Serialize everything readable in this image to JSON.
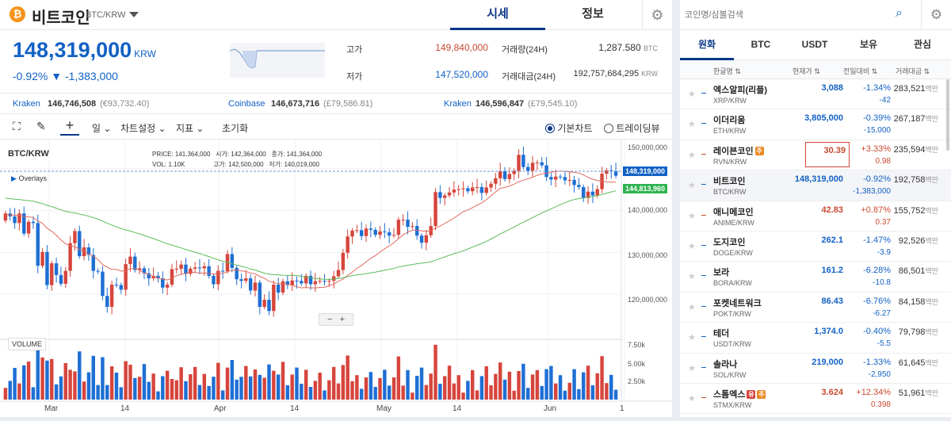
{
  "header": {
    "coin_icon": "₿",
    "coin_name": "비트코인",
    "pair": "BTC/KRW",
    "tab_price": "시세",
    "tab_info": "정보"
  },
  "price": {
    "value": "148,319,000",
    "unit": "KRW",
    "change_pct": "-0.92%",
    "change_arrow": "▼",
    "change_abs": "-1,383,000"
  },
  "stats": {
    "high_label": "고가",
    "high": "149,840,000",
    "low_label": "저가",
    "low": "147,520,000",
    "vol_label": "거래량(24H)",
    "vol": "1,287.580",
    "vol_unit": "BTC",
    "amt_label": "거래대금(24H)",
    "amt": "192,757,684,295",
    "amt_unit": "KRW"
  },
  "exchanges": [
    {
      "name": "Kraken",
      "price": "146,746,508",
      "fx": "(€93,732.40)"
    },
    {
      "name": "Coinbase",
      "price": "146,673,716",
      "fx": "(£79,586.81)"
    },
    {
      "name": "Kraken",
      "price": "146,596,847",
      "fx": "(£79,545.10)"
    }
  ],
  "toolbar": {
    "interval": "일",
    "chart_settings": "차트설정",
    "indicators": "지표",
    "reset": "초기화",
    "basic_chart": "기본차트",
    "tradingview": "트레이딩뷰"
  },
  "chart": {
    "symbol": "BTC/KRW",
    "overlays": "Overlays",
    "volume_label": "VOLUME",
    "ohlc": {
      "price_k": "PRICE:",
      "price": "141,364,000",
      "open_k": "시가:",
      "open": "142,364,000",
      "close_k": "종가:",
      "close": "141,364,000",
      "vol_k": "VOL:",
      "vol": "1.10K",
      "high_k": "고가:",
      "high": "142,500,000",
      "low_k": "저가:",
      "low": "140,019,000"
    },
    "price_ticks": [
      "150,000,000",
      "140,000,000",
      "130,000,000",
      "120,000,000"
    ],
    "vol_ticks": [
      "7.50k",
      "5.00k",
      "2.50k"
    ],
    "x_ticks": [
      "Mar",
      "14",
      "Apr",
      "14",
      "May",
      "14",
      "Jun",
      "1"
    ],
    "last_price_tag": "148,319,000",
    "ma_tag": "144,813,960"
  },
  "chart_data": {
    "type": "candlestick",
    "ylim": [
      110000000,
      156000000
    ],
    "ohlc": [
      [
        137.6,
        139.3
      ],
      [
        139.3,
        138.6
      ],
      [
        138.6,
        137.0
      ],
      [
        137.0,
        139.3
      ],
      [
        139.3,
        134.5
      ],
      [
        134.5,
        137.3
      ],
      [
        137.3,
        137.0
      ],
      [
        137.0,
        126.8
      ],
      [
        126.8,
        130.1
      ],
      [
        130.1,
        122.2
      ],
      [
        122.2,
        127.4
      ],
      [
        127.4,
        124.6
      ],
      [
        124.6,
        122.5
      ],
      [
        122.5,
        125.6
      ],
      [
        125.6,
        132.2
      ],
      [
        132.2,
        135.1
      ],
      [
        135.1,
        129.1
      ],
      [
        129.1,
        131.2
      ],
      [
        131.2,
        129.4
      ],
      [
        129.4,
        125.6
      ],
      [
        125.6,
        125.4
      ],
      [
        125.4,
        119.6
      ],
      [
        119.6,
        117.0
      ],
      [
        117.0,
        122.3
      ],
      [
        122.3,
        122.2
      ],
      [
        122.2,
        121.1
      ],
      [
        121.1,
        127.2
      ],
      [
        127.2,
        129.0
      ],
      [
        129.0,
        125.8
      ],
      [
        125.8,
        126.2
      ],
      [
        126.2,
        125.0
      ],
      [
        125.0,
        123.8
      ],
      [
        123.8,
        124.4
      ],
      [
        124.4,
        123.8
      ],
      [
        123.8,
        121.6
      ],
      [
        121.6,
        122.3
      ],
      [
        122.3,
        126.0
      ],
      [
        126.0,
        126.1
      ],
      [
        126.1,
        127.1
      ],
      [
        127.1,
        124.9
      ],
      [
        124.9,
        126.1
      ],
      [
        126.1,
        126.4
      ],
      [
        126.4,
        126.2
      ],
      [
        126.2,
        126.7
      ],
      [
        126.7,
        124.4
      ],
      [
        124.4,
        122.4
      ],
      [
        122.4,
        125.6
      ],
      [
        125.6,
        125.5
      ],
      [
        125.5,
        129.6
      ],
      [
        129.6,
        126.3
      ],
      [
        126.3,
        123.6
      ],
      [
        123.6,
        123.2
      ],
      [
        123.2,
        123.8
      ],
      [
        123.8,
        120.9
      ],
      [
        120.9,
        122.8
      ],
      [
        122.8,
        117.0
      ],
      [
        117.0,
        118.7
      ],
      [
        118.7,
        116.0
      ],
      [
        116.0,
        122.3
      ],
      [
        122.3,
        120.4
      ],
      [
        120.4,
        123.1
      ],
      [
        123.1,
        122.2
      ],
      [
        122.2,
        123.3
      ],
      [
        123.3,
        123.2
      ],
      [
        123.2,
        122.6
      ],
      [
        122.6,
        124.4
      ],
      [
        124.4,
        122.4
      ],
      [
        122.4,
        123.1
      ],
      [
        123.1,
        123.2
      ],
      [
        123.2,
        123.1
      ],
      [
        123.1,
        123.2
      ],
      [
        123.2,
        124.3
      ],
      [
        124.3,
        125.8
      ],
      [
        125.8,
        129.9
      ],
      [
        129.9,
        133.8
      ],
      [
        133.8,
        135.2
      ],
      [
        135.2,
        135.3
      ],
      [
        135.3,
        133.9
      ],
      [
        133.9,
        135.7
      ],
      [
        135.7,
        135.4
      ],
      [
        135.4,
        134.2
      ],
      [
        134.2,
        135.0
      ],
      [
        135.0,
        134.8
      ],
      [
        134.8,
        134.0
      ],
      [
        134.0,
        134.2
      ],
      [
        134.2,
        137.8
      ],
      [
        137.8,
        137.8
      ],
      [
        137.8,
        136.1
      ],
      [
        136.1,
        136.3
      ],
      [
        136.3,
        134.0
      ],
      [
        134.0,
        132.3
      ],
      [
        132.3,
        134.1
      ],
      [
        134.1,
        136.3
      ],
      [
        136.3,
        144.4
      ],
      [
        144.4,
        143.0
      ],
      [
        143.0,
        143.6
      ],
      [
        143.6,
        144.3
      ],
      [
        144.3,
        145.0
      ],
      [
        145.0,
        145.1
      ],
      [
        145.1,
        145.3
      ],
      [
        145.3,
        144.6
      ],
      [
        144.6,
        145.5
      ],
      [
        145.5,
        145.6
      ],
      [
        145.6,
        144.2
      ],
      [
        144.2,
        145.5
      ],
      [
        145.5,
        146.4
      ],
      [
        146.4,
        147.7
      ],
      [
        147.7,
        149.4
      ],
      [
        149.4,
        147.5
      ],
      [
        147.5,
        148.7
      ],
      [
        148.7,
        149.5
      ],
      [
        149.5,
        153.3
      ],
      [
        153.3,
        150.4
      ],
      [
        150.4,
        149.5
      ],
      [
        149.5,
        151.4
      ],
      [
        151.4,
        151.5
      ],
      [
        151.5,
        150.8
      ],
      [
        150.8,
        148.0
      ],
      [
        148.0,
        147.4
      ],
      [
        147.4,
        148.1
      ],
      [
        148.1,
        148.0
      ],
      [
        148.0,
        147.2
      ],
      [
        147.2,
        147.3
      ],
      [
        147.3,
        146.1
      ],
      [
        146.1,
        145.6
      ],
      [
        145.6,
        143.0
      ],
      [
        143.0,
        144.5
      ],
      [
        144.5,
        143.6
      ],
      [
        143.6,
        145.1
      ],
      [
        145.1,
        148.8
      ],
      [
        148.8,
        149.6
      ],
      [
        149.6,
        149.4
      ],
      [
        149.4,
        148.3
      ]
    ],
    "ma_short_start": 139.0,
    "ma_long_start": 143.0
  },
  "search": {
    "placeholder": "코인명/심볼검색"
  },
  "market_tabs": [
    "원화",
    "BTC",
    "USDT",
    "보유",
    "관심"
  ],
  "columns": {
    "name": "한글명 ⇅",
    "price": "현재가 ⇅",
    "change": "전일대비 ⇅",
    "volume": "거래대금 ⇅"
  },
  "coins": [
    {
      "name": "엑스알피(리플)",
      "symbol": "XRP/KRW",
      "price": "3,088",
      "pct": "-1.34%",
      "abs": "-42",
      "vol": "283,521",
      "dir": "dn"
    },
    {
      "name": "이더리움",
      "symbol": "ETH/KRW",
      "price": "3,805,000",
      "pct": "-0.39%",
      "abs": "-15,000",
      "vol": "267,187",
      "dir": "dn"
    },
    {
      "name": "레이븐코인",
      "symbol": "RVN/KRW",
      "price": "30.39",
      "pct": "+3.33%",
      "abs": "0.98",
      "vol": "235,594",
      "dir": "up",
      "badge": "주"
    },
    {
      "name": "비트코인",
      "symbol": "BTC/KRW",
      "price": "148,319,000",
      "pct": "-0.92%",
      "abs": "-1,383,000",
      "vol": "192,758",
      "dir": "dn"
    },
    {
      "name": "애니메코인",
      "symbol": "ANIME/KRW",
      "price": "42.83",
      "pct": "+0.87%",
      "abs": "0.37",
      "vol": "155,752",
      "dir": "up"
    },
    {
      "name": "도지코인",
      "symbol": "DOGE/KRW",
      "price": "262.1",
      "pct": "-1.47%",
      "abs": "-3.9",
      "vol": "92,526",
      "dir": "dn"
    },
    {
      "name": "보라",
      "symbol": "BORA/KRW",
      "price": "161.2",
      "pct": "-6.28%",
      "abs": "-10.8",
      "vol": "86,501",
      "dir": "dn"
    },
    {
      "name": "포켓네트워크",
      "symbol": "POKT/KRW",
      "price": "86.43",
      "pct": "-6.76%",
      "abs": "-6.27",
      "vol": "84,158",
      "dir": "dn"
    },
    {
      "name": "테더",
      "symbol": "USDT/KRW",
      "price": "1,374.0",
      "pct": "-0.40%",
      "abs": "-5.5",
      "vol": "79,798",
      "dir": "dn"
    },
    {
      "name": "솔라나",
      "symbol": "SOL/KRW",
      "price": "219,000",
      "pct": "-1.33%",
      "abs": "-2,950",
      "vol": "61,645",
      "dir": "dn"
    },
    {
      "name": "스톰엑스",
      "symbol": "STMX/KRW",
      "price": "3.624",
      "pct": "+12.34%",
      "abs": "0.398",
      "vol": "51,961",
      "dir": "up",
      "badge": "유",
      "badge2": "주"
    }
  ],
  "vol_unit": "백만",
  "colors": {
    "up": "#c84a31",
    "down": "#1261c4",
    "accent": "#093687"
  }
}
